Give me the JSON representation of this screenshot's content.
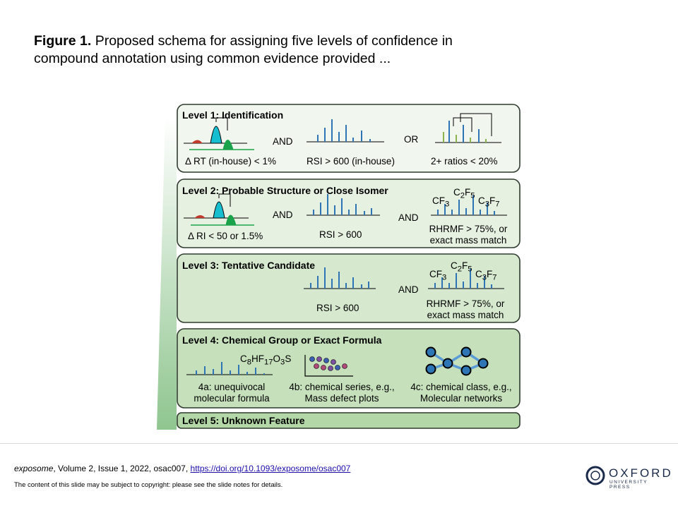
{
  "caption": {
    "label": "Figure 1.",
    "text": " Proposed schema for assigning five levels of confidence in compound  annotation using common  evidence provided ..."
  },
  "levels": [
    {
      "title": "Level 1: Identification",
      "items": [
        "Δ RT (in-house) < 1%",
        "RSI > 600 (in-house)",
        "2+ ratios < 20%"
      ],
      "joiners": [
        "AND",
        "OR"
      ]
    },
    {
      "title": "Level 2: Probable Structure or Close Isomer",
      "items": [
        "Δ RI < 50 or 1.5%",
        "RSI > 600",
        "RHRMF > 75%, or",
        "exact mass match"
      ],
      "joiners": [
        "AND",
        "AND"
      ],
      "fragments": [
        "CF",
        "3",
        "C",
        "2",
        "F",
        "5",
        "C",
        "3",
        "F",
        "7"
      ]
    },
    {
      "title": "Level 3: Tentative Candidate",
      "items": [
        "RSI > 600",
        "RHRMF > 75%, or",
        "exact mass match"
      ],
      "joiners": [
        "AND"
      ],
      "fragments": [
        "CF",
        "3",
        "C",
        "2",
        "F",
        "5",
        "C",
        "3",
        "F",
        "7"
      ]
    },
    {
      "title": "Level 4: Chemical Group or Exact Formula",
      "formula": [
        "C",
        "8",
        "HF",
        "17",
        "O",
        "3",
        "S"
      ],
      "items": [
        "4a: unequivocal",
        "molecular formula",
        "4b: chemical series, e.g.,",
        "Mass defect plots",
        "4c: chemical class, e.g.,",
        "Molecular networks"
      ]
    },
    {
      "title": "Level 5: Unknown Feature"
    }
  ],
  "colors": {
    "box_stroke": "#2f3b2f",
    "spectrum_blue": "#2e75b6",
    "peak_red": "#c0392b",
    "peak_green": "#1aa34a",
    "peak_cyan": "#17becf",
    "wedge_green": "#8fc58f",
    "level1_fill": "#f1f6ee",
    "level2_fill": "#e7f1e2",
    "level3_fill": "#d6e9cf",
    "level4_fill": "#c5e0bb",
    "level5_fill": "#b3d7a7"
  },
  "footer": {
    "journal": "exposome",
    "citation": ", Volume 2, Issue 1, 2022, osac007, ",
    "doi": "https://doi.org/10.1093/exposome/osac007",
    "notice": "The content of this slide may be subject to copyright: please see the slide notes for details."
  },
  "logo": {
    "name": "OXFORD",
    "sub": "UNIVERSITY PRESS"
  }
}
